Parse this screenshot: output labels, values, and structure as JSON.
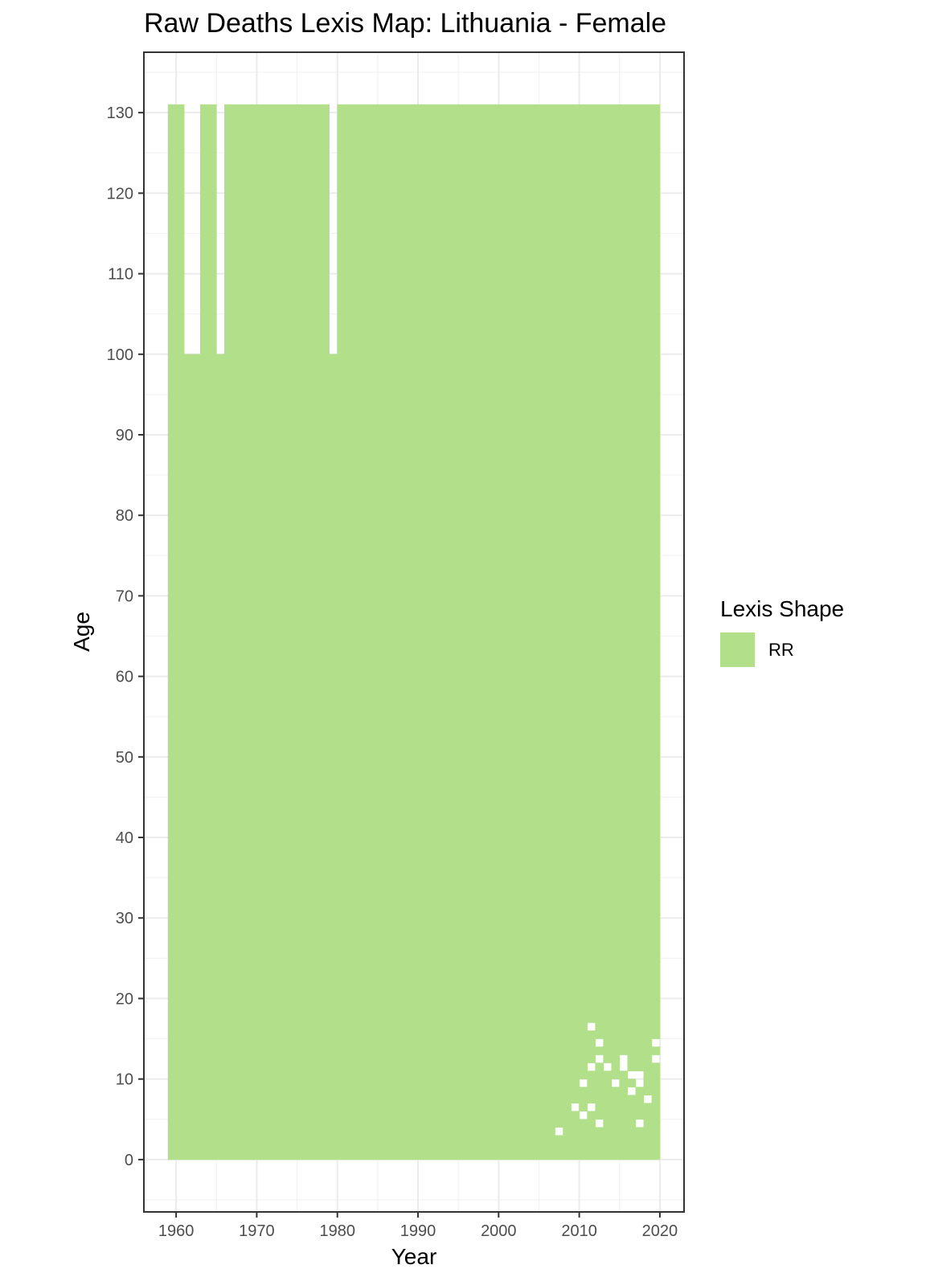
{
  "chart_data": {
    "type": "heatmap",
    "title": "Raw Deaths Lexis Map: Lithuania - Female",
    "xlabel": "Year",
    "ylabel": "Age",
    "xlim": [
      1956,
      2023
    ],
    "ylim": [
      -6.5,
      137.5
    ],
    "x_ticks": [
      1960,
      1970,
      1980,
      1990,
      2000,
      2010,
      2020
    ],
    "y_ticks": [
      0,
      10,
      20,
      30,
      40,
      50,
      60,
      70,
      80,
      90,
      100,
      110,
      120,
      130
    ],
    "grid": true,
    "legend": {
      "title": "Lexis Shape",
      "placement": "right",
      "entries": [
        {
          "label": "RR",
          "color": "#b2df8a"
        }
      ]
    },
    "fill_color": "#b2df8a",
    "years": [
      1959,
      2019
    ],
    "ages": [
      0,
      130
    ],
    "upper_age_by_year_exceptions": [
      {
        "year": 1961,
        "max_age": 99
      },
      {
        "year": 1962,
        "max_age": 99
      },
      {
        "year": 1965,
        "max_age": 99
      },
      {
        "year": 1979,
        "max_age": 99
      }
    ],
    "missing_cells": [
      {
        "year": 2007,
        "age": 3
      },
      {
        "year": 2009,
        "age": 6
      },
      {
        "year": 2010,
        "age": 5
      },
      {
        "year": 2010,
        "age": 9
      },
      {
        "year": 2011,
        "age": 6
      },
      {
        "year": 2011,
        "age": 11
      },
      {
        "year": 2011,
        "age": 16
      },
      {
        "year": 2012,
        "age": 4
      },
      {
        "year": 2012,
        "age": 12
      },
      {
        "year": 2012,
        "age": 14
      },
      {
        "year": 2013,
        "age": 11
      },
      {
        "year": 2014,
        "age": 9
      },
      {
        "year": 2015,
        "age": 11
      },
      {
        "year": 2015,
        "age": 12
      },
      {
        "year": 2016,
        "age": 8
      },
      {
        "year": 2016,
        "age": 10
      },
      {
        "year": 2017,
        "age": 4
      },
      {
        "year": 2017,
        "age": 9
      },
      {
        "year": 2017,
        "age": 10
      },
      {
        "year": 2018,
        "age": 7
      },
      {
        "year": 2019,
        "age": 12
      },
      {
        "year": 2019,
        "age": 14
      }
    ]
  }
}
